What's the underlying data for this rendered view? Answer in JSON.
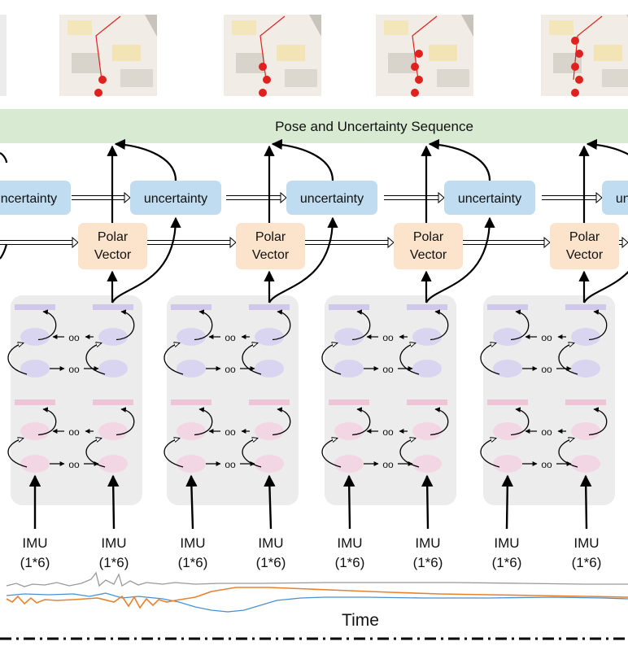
{
  "banner": {
    "title": "Pose and Uncertainty Sequence"
  },
  "uncertainty_boxes": [
    {
      "label": "uncertainty"
    },
    {
      "label": "uncertainty"
    },
    {
      "label": "uncertainty"
    },
    {
      "label": "uncertainty"
    },
    {
      "label": "uncertainty"
    },
    {
      "label": "uncertainty"
    }
  ],
  "polar_boxes": [
    {
      "line1": "Polar",
      "line2": "Vector"
    },
    {
      "line1": "Polar",
      "line2": "Vector"
    },
    {
      "line1": "Polar",
      "line2": "Vector"
    },
    {
      "line1": "Polar",
      "line2": "Vector"
    }
  ],
  "ellipsis": "oo",
  "imu_inputs": [
    {
      "name": "IMU",
      "shape": "(1*6)"
    },
    {
      "name": "IMU",
      "shape": "(1*6)"
    },
    {
      "name": "IMU",
      "shape": "(1*6)"
    },
    {
      "name": "IMU",
      "shape": "(1*6)"
    },
    {
      "name": "IMU",
      "shape": "(1*6)"
    },
    {
      "name": "IMU",
      "shape": "(1*6)"
    },
    {
      "name": "IMU",
      "shape": "(1*6)"
    },
    {
      "name": "IMU",
      "shape": "(1*6)"
    }
  ],
  "signal": {
    "axis_label": "Time"
  },
  "trajectory_points": [
    2,
    3,
    4,
    5
  ],
  "colors": {
    "banner": "#d8ebd2",
    "uncertainty_box": "#bfdcf0",
    "polar_box": "#fbe3cc",
    "lstm_panel": "#ececec",
    "lstm_upper": "#d9d5f0",
    "lstm_lower": "#f2d6e3",
    "trajectory": "#e0211e",
    "signal_gray": "#9a9a9a",
    "signal_blue": "#4a90d0",
    "signal_orange": "#e8822e"
  }
}
